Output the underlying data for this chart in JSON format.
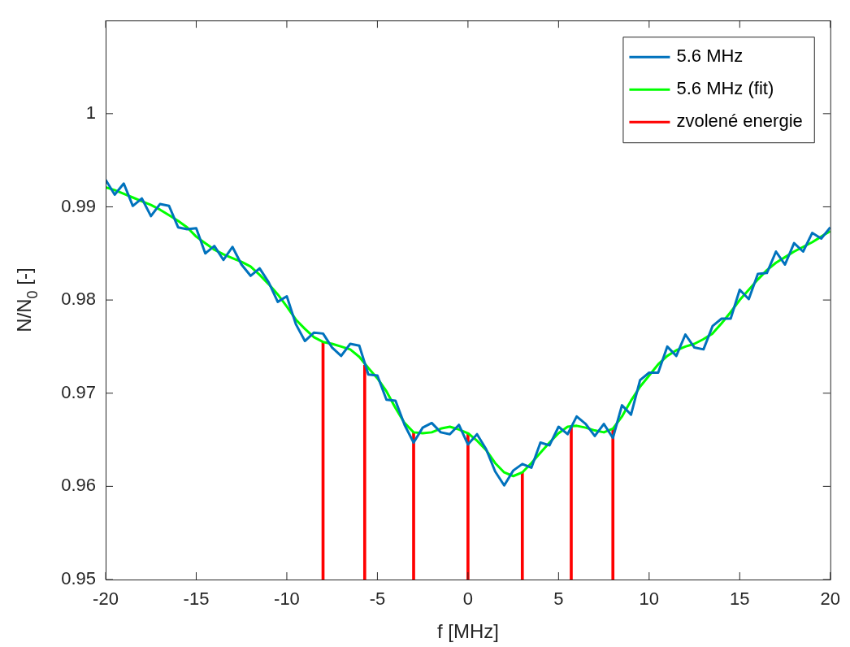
{
  "chart_data": {
    "type": "line",
    "xlabel": "f [MHz]",
    "ylabel": "N/N$_{0}$ [-]",
    "x": [
      -20,
      -19.5,
      -19,
      -18.5,
      -18,
      -17.5,
      -17,
      -16.5,
      -16,
      -15.5,
      -15,
      -14.5,
      -14,
      -13.5,
      -13,
      -12.5,
      -12,
      -11.5,
      -11,
      -10.5,
      -10,
      -9.5,
      -9,
      -8.5,
      -8,
      -7.5,
      -7,
      -6.5,
      -6,
      -5.5,
      -5,
      -4.5,
      -4,
      -3.5,
      -3,
      -2.5,
      -2,
      -1.5,
      -1,
      -0.5,
      0,
      0.5,
      1,
      1.5,
      2,
      2.5,
      3,
      3.5,
      4,
      4.5,
      5,
      5.5,
      6,
      6.5,
      7,
      7.5,
      8,
      8.5,
      9,
      9.5,
      10,
      10.5,
      11,
      11.5,
      12,
      12.5,
      13,
      13.5,
      14,
      14.5,
      15,
      15.5,
      16,
      16.5,
      17,
      17.5,
      18,
      18.5,
      19,
      19.5,
      20
    ],
    "series": [
      {
        "name": "5.6 MHz",
        "color": "#0072bd",
        "values": [
          0.9929,
          0.9913,
          0.9925,
          0.9901,
          0.9909,
          0.989,
          0.9903,
          0.9901,
          0.9878,
          0.9876,
          0.9877,
          0.985,
          0.9858,
          0.9843,
          0.9857,
          0.9838,
          0.9826,
          0.9834,
          0.9819,
          0.9798,
          0.9804,
          0.9774,
          0.9756,
          0.9765,
          0.9764,
          0.9749,
          0.974,
          0.9753,
          0.9751,
          0.972,
          0.9719,
          0.9693,
          0.9692,
          0.9666,
          0.9647,
          0.9663,
          0.9668,
          0.9658,
          0.9656,
          0.9666,
          0.9645,
          0.9656,
          0.964,
          0.9616,
          0.9601,
          0.9617,
          0.9624,
          0.962,
          0.9647,
          0.9644,
          0.9664,
          0.9656,
          0.9675,
          0.9667,
          0.9654,
          0.9667,
          0.9652,
          0.9687,
          0.9677,
          0.9714,
          0.9722,
          0.9722,
          0.975,
          0.974,
          0.9763,
          0.9749,
          0.9747,
          0.9772,
          0.978,
          0.978,
          0.9811,
          0.9801,
          0.9828,
          0.9829,
          0.9852,
          0.9838,
          0.9861,
          0.9852,
          0.9872,
          0.9866,
          0.9878
        ]
      },
      {
        "name": "5.6 MHz (fit)",
        "color": "#00ff00",
        "values": [
          0.9921,
          0.9918,
          0.9914,
          0.991,
          0.9906,
          0.9902,
          0.9897,
          0.9891,
          0.9885,
          0.9878,
          0.9868,
          0.9861,
          0.9854,
          0.9849,
          0.9845,
          0.9841,
          0.9836,
          0.9827,
          0.9817,
          0.9806,
          0.9793,
          0.9779,
          0.9769,
          0.976,
          0.9755,
          0.9753,
          0.975,
          0.9747,
          0.9739,
          0.9727,
          0.9716,
          0.9702,
          0.9684,
          0.9668,
          0.9658,
          0.9657,
          0.9658,
          0.9662,
          0.9664,
          0.9661,
          0.9657,
          0.9649,
          0.9639,
          0.9625,
          0.9615,
          0.9611,
          0.9615,
          0.9625,
          0.9636,
          0.9647,
          0.9657,
          0.9664,
          0.9665,
          0.9663,
          0.966,
          0.9658,
          0.9662,
          0.9675,
          0.9692,
          0.9707,
          0.9719,
          0.9731,
          0.974,
          0.9746,
          0.975,
          0.9753,
          0.9758,
          0.9764,
          0.9775,
          0.9787,
          0.98,
          0.9811,
          0.9822,
          0.9832,
          0.984,
          0.9846,
          0.9852,
          0.9857,
          0.9862,
          0.9868,
          0.9874
        ]
      },
      {
        "name": "zvolené energie",
        "type": "bar",
        "color": "#ff0000",
        "x": [
          -8,
          -5.7,
          -3,
          0,
          3,
          5.7,
          8
        ],
        "values": [
          0.9755,
          0.973,
          0.9658,
          0.9657,
          0.9615,
          0.9665,
          0.9662
        ]
      }
    ],
    "xlim": [
      -20,
      20
    ],
    "xticks": [
      -20,
      -15,
      -10,
      -5,
      0,
      5,
      10,
      15,
      20
    ],
    "ylim": [
      0.95,
      1.01
    ],
    "yticks": [
      0.95,
      0.96,
      0.97,
      0.98,
      0.99,
      {
        "value": 1,
        "label": "1"
      }
    ],
    "grid": false,
    "legend": "top right",
    "marker": "none",
    "line_style": "solid"
  }
}
